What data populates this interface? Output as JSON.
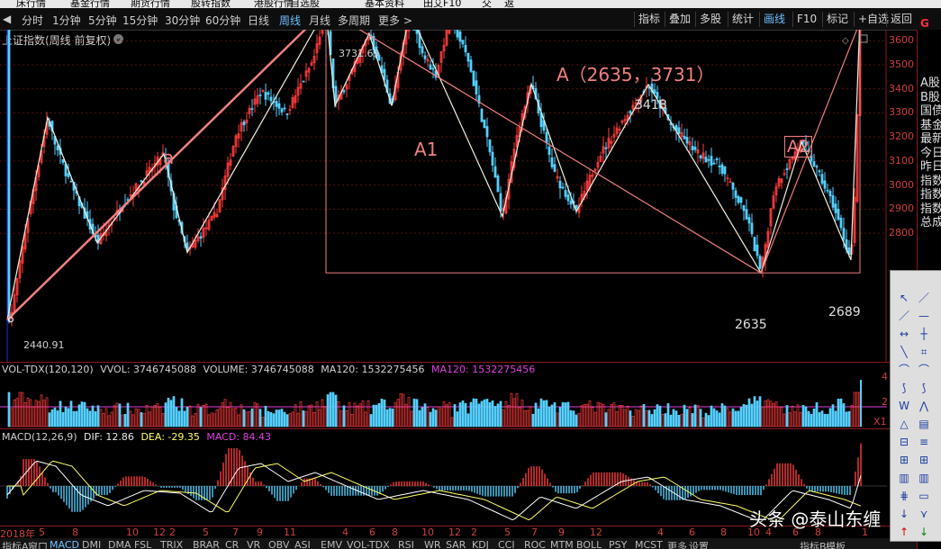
{
  "top_menu": [
    "床行情",
    "基金行情",
    "期货行情",
    "股转指数",
    "港股行情",
    "自选股",
    "基本资料",
    "田艾F10",
    "交",
    "返"
  ],
  "toolbar": {
    "left": [
      "分时",
      "1分钟",
      "5分钟",
      "15分钟",
      "30分钟",
      "60分钟",
      "日线",
      "周线",
      "月线",
      "多周期",
      "更多 >"
    ],
    "active": "周线",
    "right": [
      "指标",
      "叠加",
      "多股",
      "统计",
      "画线",
      "F10",
      "标记",
      "+自选",
      "返回"
    ],
    "right_active": "画线"
  },
  "chart_title": "上证指数(周线 前复权)",
  "annotations": {
    "high_label": "3731.69",
    "low_label": "2440.91",
    "wave_a": "a",
    "wave_A1": "A1",
    "wave_A2": "A2",
    "range_A": "A（2635，3731）",
    "p3418": "3418",
    "p2635": "2635",
    "p2689": "2689"
  },
  "y_axis_labels": [
    "3600",
    "3500",
    "3400",
    "3300",
    "3200",
    "3100",
    "3000",
    "2900",
    "2800"
  ],
  "volume_panel": {
    "title": "VOL-TDX(120,120)",
    "vvol_label": "VVOL: 3746745088",
    "volume_label": "VOLUME: 3746745088",
    "ma120_label": "MA120: 1532275456",
    "ma120_label2": "MA120: 1532275456",
    "axis_labels": [
      "4",
      "2"
    ],
    "x1": "X1"
  },
  "macd_panel": {
    "title": "MACD(12,26,9)",
    "dif": "DIF: 12.86",
    "dea": "DEA: -29.35",
    "macd": "MACD: 84.43"
  },
  "x_axis_labels": [
    "2018年",
    "5",
    "8",
    "10",
    "12",
    "2",
    "5",
    "7",
    "9",
    "11",
    "4",
    "6",
    "8",
    "10",
    "12",
    "2",
    "5",
    "7",
    "9",
    "12",
    "4",
    "6",
    "8",
    "10",
    "4",
    "6",
    "8",
    "1"
  ],
  "bottom_tabs": [
    "指标A",
    "窗口",
    "MACD",
    "DMI",
    "DMA",
    "FSL",
    "TRIX",
    "BRAR",
    "CR",
    "VR",
    "OBV",
    "ASI",
    "EMV",
    "VOL-TDX",
    "RSI",
    "WR",
    "SAR",
    "KDJ",
    "CCI",
    "ROC",
    "MTM",
    "BOLL",
    "PSY",
    "MCST",
    "更多",
    "设置",
    "指标B",
    "模板"
  ],
  "right_panel_text": [
    "A股",
    "B股",
    "国债",
    "基金",
    "最新",
    "今日",
    "昨日",
    "指数",
    "指数",
    "指数",
    "总成"
  ],
  "right_panel_header": "G",
  "watermark": "头条 @泰山东缠",
  "colors": {
    "up": "#ff3c3c",
    "down": "#54d0ff",
    "annotation": "#f08080",
    "accent": "#6ec0ff",
    "macd_dea": "#ffff66"
  }
}
